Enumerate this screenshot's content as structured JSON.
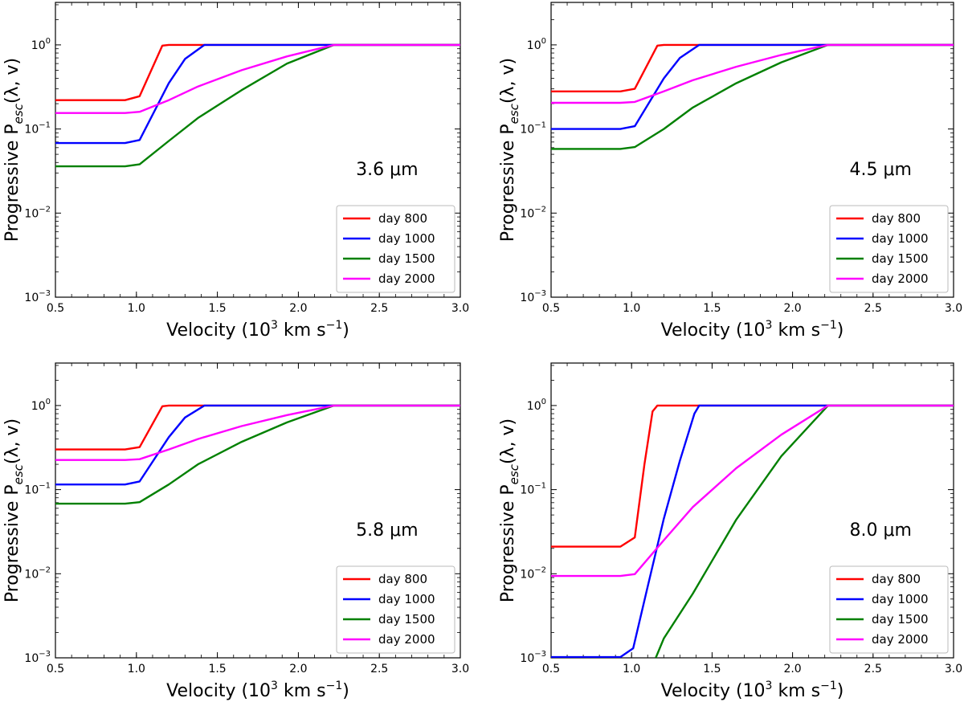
{
  "figure": {
    "panel_count": 4
  },
  "chart_data": [
    {
      "type": "line",
      "annotation": "3.6 μm",
      "xlabel_parts": {
        "prefix": "Velocity (10",
        "sup1": "3",
        "mid": " km s",
        "sup2": "−1",
        "suffix": ")"
      },
      "ylabel_parts": {
        "prefix": "Progressive P",
        "sub": "esc",
        "suffix": "(λ, v)"
      },
      "xlim": [
        0.5,
        3.0
      ],
      "ylim": [
        0.001,
        3.2
      ],
      "yscale": "log",
      "xticks": [
        "0.5",
        "1.0",
        "1.5",
        "2.0",
        "2.5",
        "3.0"
      ],
      "yticks": [
        {
          "base": "10",
          "exp": "−3"
        },
        {
          "base": "10",
          "exp": "−2"
        },
        {
          "base": "10",
          "exp": "−1"
        },
        {
          "base": "10",
          "exp": "0"
        }
      ],
      "legend_position": "lower-right",
      "series": [
        {
          "name": "day 800",
          "color": "#ff0000",
          "points": [
            [
              0.5,
              0.22
            ],
            [
              0.93,
              0.22
            ],
            [
              1.02,
              0.245
            ],
            [
              1.16,
              0.98
            ],
            [
              1.2,
              1.0
            ],
            [
              3.0,
              1.0
            ]
          ]
        },
        {
          "name": "day 1000",
          "color": "#0000ff",
          "points": [
            [
              0.5,
              0.068
            ],
            [
              0.93,
              0.068
            ],
            [
              1.02,
              0.074
            ],
            [
              1.2,
              0.35
            ],
            [
              1.3,
              0.68
            ],
            [
              1.42,
              1.0
            ],
            [
              3.0,
              1.0
            ]
          ]
        },
        {
          "name": "day 1500",
          "color": "#008000",
          "points": [
            [
              0.5,
              0.036
            ],
            [
              0.93,
              0.036
            ],
            [
              1.02,
              0.038
            ],
            [
              1.2,
              0.072
            ],
            [
              1.38,
              0.135
            ],
            [
              1.65,
              0.29
            ],
            [
              1.93,
              0.6
            ],
            [
              2.22,
              1.0
            ],
            [
              3.0,
              1.0
            ]
          ]
        },
        {
          "name": "day 2000",
          "color": "#ff00ff",
          "points": [
            [
              0.5,
              0.155
            ],
            [
              0.93,
              0.155
            ],
            [
              1.02,
              0.16
            ],
            [
              1.2,
              0.22
            ],
            [
              1.38,
              0.32
            ],
            [
              1.65,
              0.5
            ],
            [
              1.93,
              0.73
            ],
            [
              2.22,
              1.0
            ],
            [
              3.0,
              1.0
            ]
          ]
        }
      ]
    },
    {
      "type": "line",
      "annotation": "4.5 μm",
      "xlabel_parts": {
        "prefix": "Velocity (10",
        "sup1": "3",
        "mid": " km s",
        "sup2": "−1",
        "suffix": ")"
      },
      "ylabel_parts": {
        "prefix": "Progressive P",
        "sub": "esc",
        "suffix": "(λ, v)"
      },
      "xlim": [
        0.5,
        3.0
      ],
      "ylim": [
        0.001,
        3.2
      ],
      "yscale": "log",
      "xticks": [
        "0.5",
        "1.0",
        "1.5",
        "2.0",
        "2.5",
        "3.0"
      ],
      "yticks": [
        {
          "base": "10",
          "exp": "−3"
        },
        {
          "base": "10",
          "exp": "−2"
        },
        {
          "base": "10",
          "exp": "−1"
        },
        {
          "base": "10",
          "exp": "0"
        }
      ],
      "legend_position": "lower-right",
      "series": [
        {
          "name": "day 800",
          "color": "#ff0000",
          "points": [
            [
              0.5,
              0.28
            ],
            [
              0.93,
              0.28
            ],
            [
              1.02,
              0.3
            ],
            [
              1.16,
              0.98
            ],
            [
              1.2,
              1.0
            ],
            [
              3.0,
              1.0
            ]
          ]
        },
        {
          "name": "day 1000",
          "color": "#0000ff",
          "points": [
            [
              0.5,
              0.1
            ],
            [
              0.93,
              0.1
            ],
            [
              1.02,
              0.108
            ],
            [
              1.2,
              0.4
            ],
            [
              1.3,
              0.7
            ],
            [
              1.42,
              1.0
            ],
            [
              3.0,
              1.0
            ]
          ]
        },
        {
          "name": "day 1500",
          "color": "#008000",
          "points": [
            [
              0.5,
              0.058
            ],
            [
              0.93,
              0.058
            ],
            [
              1.02,
              0.061
            ],
            [
              1.2,
              0.1
            ],
            [
              1.38,
              0.18
            ],
            [
              1.65,
              0.35
            ],
            [
              1.93,
              0.62
            ],
            [
              2.22,
              1.0
            ],
            [
              3.0,
              1.0
            ]
          ]
        },
        {
          "name": "day 2000",
          "color": "#ff00ff",
          "points": [
            [
              0.5,
              0.205
            ],
            [
              0.93,
              0.205
            ],
            [
              1.02,
              0.21
            ],
            [
              1.2,
              0.28
            ],
            [
              1.38,
              0.38
            ],
            [
              1.65,
              0.55
            ],
            [
              1.93,
              0.76
            ],
            [
              2.22,
              1.0
            ],
            [
              3.0,
              1.0
            ]
          ]
        }
      ]
    },
    {
      "type": "line",
      "annotation": "5.8 μm",
      "xlabel_parts": {
        "prefix": "Velocity (10",
        "sup1": "3",
        "mid": " km s",
        "sup2": "−1",
        "suffix": ")"
      },
      "ylabel_parts": {
        "prefix": "Progressive P",
        "sub": "esc",
        "suffix": "(λ, v)"
      },
      "xlim": [
        0.5,
        3.0
      ],
      "ylim": [
        0.001,
        3.2
      ],
      "yscale": "log",
      "xticks": [
        "0.5",
        "1.0",
        "1.5",
        "2.0",
        "2.5",
        "3.0"
      ],
      "yticks": [
        {
          "base": "10",
          "exp": "−3"
        },
        {
          "base": "10",
          "exp": "−2"
        },
        {
          "base": "10",
          "exp": "−1"
        },
        {
          "base": "10",
          "exp": "0"
        }
      ],
      "legend_position": "lower-right",
      "series": [
        {
          "name": "day 800",
          "color": "#ff0000",
          "points": [
            [
              0.5,
              0.3
            ],
            [
              0.93,
              0.3
            ],
            [
              1.02,
              0.32
            ],
            [
              1.16,
              0.98
            ],
            [
              1.2,
              1.0
            ],
            [
              3.0,
              1.0
            ]
          ]
        },
        {
          "name": "day 1000",
          "color": "#0000ff",
          "points": [
            [
              0.5,
              0.115
            ],
            [
              0.93,
              0.115
            ],
            [
              1.02,
              0.125
            ],
            [
              1.2,
              0.42
            ],
            [
              1.3,
              0.72
            ],
            [
              1.42,
              1.0
            ],
            [
              3.0,
              1.0
            ]
          ]
        },
        {
          "name": "day 1500",
          "color": "#008000",
          "points": [
            [
              0.5,
              0.068
            ],
            [
              0.93,
              0.068
            ],
            [
              1.02,
              0.071
            ],
            [
              1.2,
              0.115
            ],
            [
              1.38,
              0.2
            ],
            [
              1.65,
              0.37
            ],
            [
              1.93,
              0.63
            ],
            [
              2.22,
              1.0
            ],
            [
              3.0,
              1.0
            ]
          ]
        },
        {
          "name": "day 2000",
          "color": "#ff00ff",
          "points": [
            [
              0.5,
              0.225
            ],
            [
              0.93,
              0.225
            ],
            [
              1.02,
              0.23
            ],
            [
              1.2,
              0.3
            ],
            [
              1.38,
              0.4
            ],
            [
              1.65,
              0.57
            ],
            [
              1.93,
              0.77
            ],
            [
              2.22,
              1.0
            ],
            [
              3.0,
              1.0
            ]
          ]
        }
      ]
    },
    {
      "type": "line",
      "annotation": "8.0 μm",
      "xlabel_parts": {
        "prefix": "Velocity (10",
        "sup1": "3",
        "mid": " km s",
        "sup2": "−1",
        "suffix": ")"
      },
      "ylabel_parts": {
        "prefix": "Progressive P",
        "sub": "esc",
        "suffix": "(λ, v)"
      },
      "xlim": [
        0.5,
        3.0
      ],
      "ylim": [
        0.001,
        3.2
      ],
      "yscale": "log",
      "xticks": [
        "0.5",
        "1.0",
        "1.5",
        "2.0",
        "2.5",
        "3.0"
      ],
      "yticks": [
        {
          "base": "10",
          "exp": "−3"
        },
        {
          "base": "10",
          "exp": "−2"
        },
        {
          "base": "10",
          "exp": "−1"
        },
        {
          "base": "10",
          "exp": "0"
        }
      ],
      "legend_position": "lower-right",
      "series": [
        {
          "name": "day 800",
          "color": "#ff0000",
          "points": [
            [
              0.5,
              0.021
            ],
            [
              0.93,
              0.021
            ],
            [
              1.02,
              0.027
            ],
            [
              1.08,
              0.2
            ],
            [
              1.13,
              0.85
            ],
            [
              1.16,
              1.0
            ],
            [
              3.0,
              1.0
            ]
          ]
        },
        {
          "name": "day 1000",
          "color": "#0000ff",
          "points": [
            [
              0.5,
              0.00102
            ],
            [
              0.93,
              0.00102
            ],
            [
              1.01,
              0.0013
            ],
            [
              1.1,
              0.007
            ],
            [
              1.2,
              0.045
            ],
            [
              1.3,
              0.22
            ],
            [
              1.39,
              0.8
            ],
            [
              1.42,
              1.0
            ],
            [
              3.0,
              1.0
            ]
          ]
        },
        {
          "name": "day 1500",
          "color": "#008000",
          "points": [
            [
              1.15,
              0.001
            ],
            [
              1.2,
              0.0017
            ],
            [
              1.38,
              0.0058
            ],
            [
              1.65,
              0.044
            ],
            [
              1.93,
              0.25
            ],
            [
              2.22,
              1.0
            ],
            [
              3.0,
              1.0
            ]
          ]
        },
        {
          "name": "day 2000",
          "color": "#ff00ff",
          "points": [
            [
              0.5,
              0.0094
            ],
            [
              0.93,
              0.0094
            ],
            [
              1.02,
              0.0099
            ],
            [
              1.2,
              0.025
            ],
            [
              1.38,
              0.062
            ],
            [
              1.65,
              0.18
            ],
            [
              1.93,
              0.45
            ],
            [
              2.22,
              1.0
            ],
            [
              3.0,
              1.0
            ]
          ]
        }
      ]
    }
  ]
}
